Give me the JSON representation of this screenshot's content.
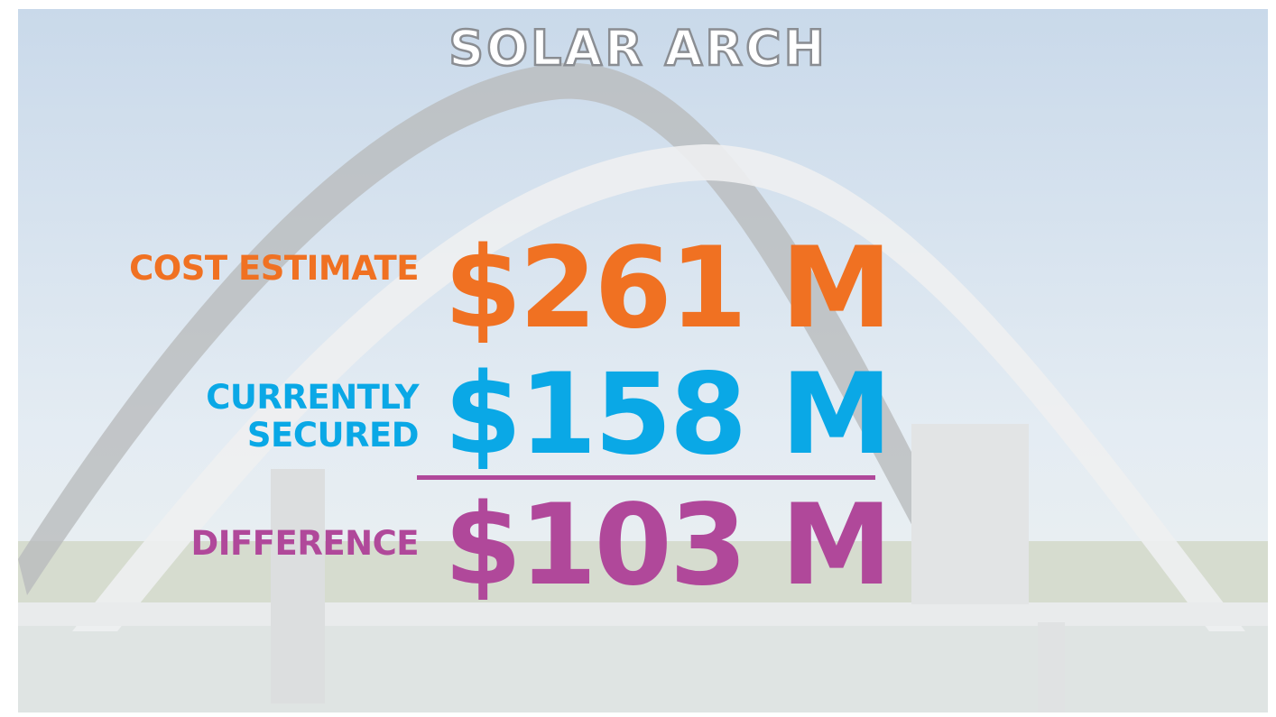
{
  "title": "SOLAR ARCH",
  "rows": [
    {
      "label_lines": [
        "COST ESTIMATE"
      ],
      "amount": "$261 M",
      "color": "#f07122"
    },
    {
      "label_lines": [
        "CURRENTLY",
        "SECURED"
      ],
      "amount": "$158 M",
      "color": "#0aa8e6"
    },
    {
      "label_lines": [
        "DIFFERENCE"
      ],
      "amount": "$103 M",
      "color": "#b0489a"
    }
  ]
}
